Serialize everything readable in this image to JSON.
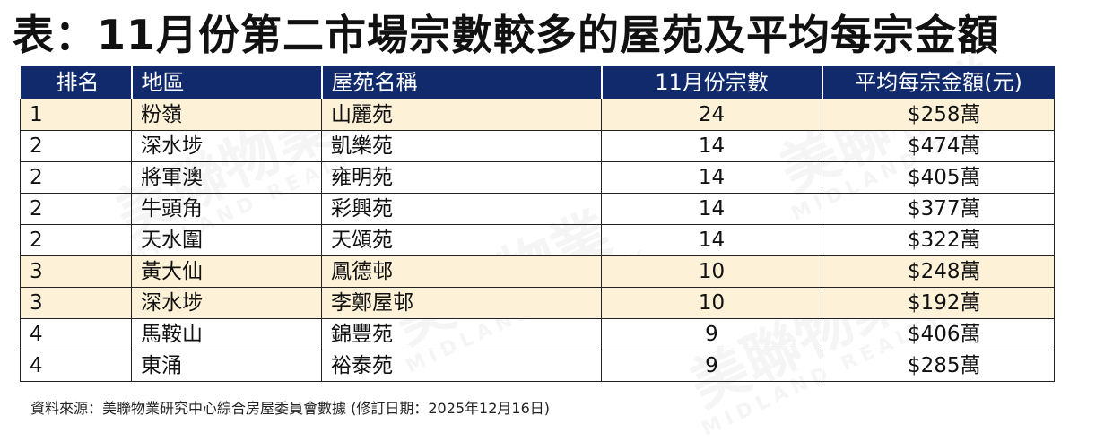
{
  "title": "表：11月份第二市場宗數較多的屋苑及平均每宗金額",
  "watermark": {
    "brand_cn": "美聯物業",
    "brand_en": "MIDLAND REALTY"
  },
  "chart_data": {
    "type": "table",
    "columns": [
      "排名",
      "地區",
      "屋苑名稱",
      "11月份宗數",
      "平均每宗金額(元)"
    ],
    "rows": [
      {
        "rank": "1",
        "district": "粉嶺",
        "estate": "山麗苑",
        "transactions": 24,
        "avg_price": "$258萬",
        "highlight": true
      },
      {
        "rank": "2",
        "district": "深水埗",
        "estate": "凱樂苑",
        "transactions": 14,
        "avg_price": "$474萬",
        "highlight": false
      },
      {
        "rank": "2",
        "district": "將軍澳",
        "estate": "雍明苑",
        "transactions": 14,
        "avg_price": "$405萬",
        "highlight": false
      },
      {
        "rank": "2",
        "district": "牛頭角",
        "estate": "彩興苑",
        "transactions": 14,
        "avg_price": "$377萬",
        "highlight": false
      },
      {
        "rank": "2",
        "district": "天水圍",
        "estate": "天頌苑",
        "transactions": 14,
        "avg_price": "$322萬",
        "highlight": false
      },
      {
        "rank": "3",
        "district": "黃大仙",
        "estate": "鳳德邨",
        "transactions": 10,
        "avg_price": "$248萬",
        "highlight": true
      },
      {
        "rank": "3",
        "district": "深水埗",
        "estate": "李鄭屋邨",
        "transactions": 10,
        "avg_price": "$192萬",
        "highlight": true
      },
      {
        "rank": "4",
        "district": "馬鞍山",
        "estate": "錦豐苑",
        "transactions": 9,
        "avg_price": "$406萬",
        "highlight": false
      },
      {
        "rank": "4",
        "district": "東涌",
        "estate": "裕泰苑",
        "transactions": 9,
        "avg_price": "$285萬",
        "highlight": false
      }
    ],
    "header_color": "#102a6b",
    "highlight_color": "#fdf1d8"
  },
  "source": "資料來源：美聯物業研究中心綜合房屋委員會數據 (修訂日期：2025年12月16日)"
}
